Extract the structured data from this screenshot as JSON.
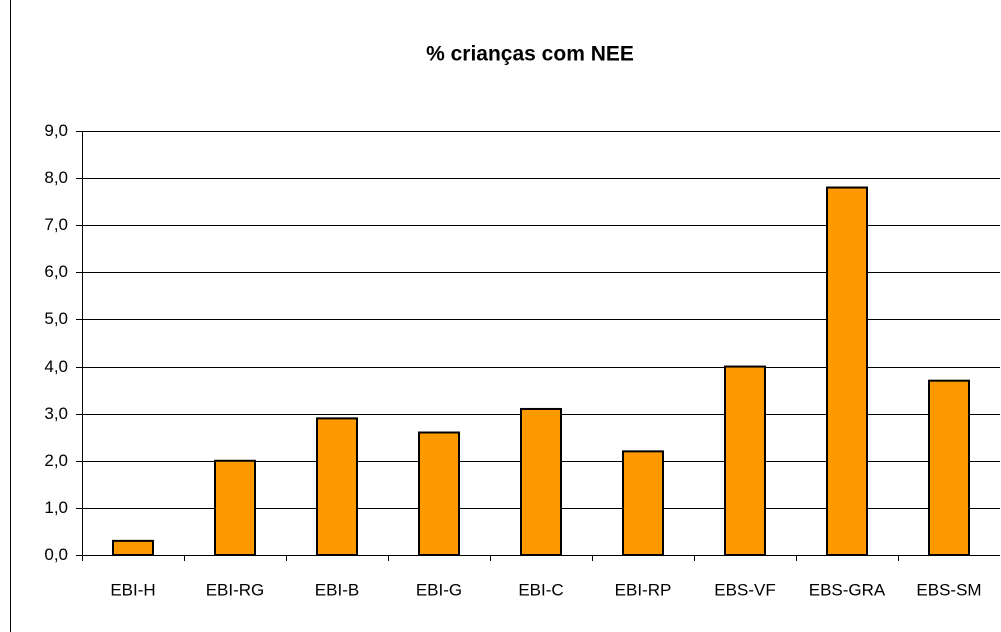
{
  "chart_data": {
    "type": "bar",
    "title": "% crianças com NEE",
    "categories": [
      "EBI-H",
      "EBI-RG",
      "EBI-B",
      "EBI-G",
      "EBI-C",
      "EBI-RP",
      "EBS-VF",
      "EBS-GRA",
      "EBS-SM"
    ],
    "values": [
      0.3,
      2.0,
      2.9,
      2.6,
      3.1,
      2.2,
      4.0,
      7.8,
      3.7
    ],
    "color": "#ff9900",
    "ylim": [
      0,
      9
    ],
    "yticks": [
      {
        "value": 0,
        "label": "0,0"
      },
      {
        "value": 1,
        "label": "1,0"
      },
      {
        "value": 2,
        "label": "2,0"
      },
      {
        "value": 3,
        "label": "3,0"
      },
      {
        "value": 4,
        "label": "4,0"
      },
      {
        "value": 5,
        "label": "5,0"
      },
      {
        "value": 6,
        "label": "6,0"
      },
      {
        "value": 7,
        "label": "7,0"
      },
      {
        "value": 8,
        "label": "8,0"
      },
      {
        "value": 9,
        "label": "9,0"
      }
    ],
    "grid": true
  }
}
